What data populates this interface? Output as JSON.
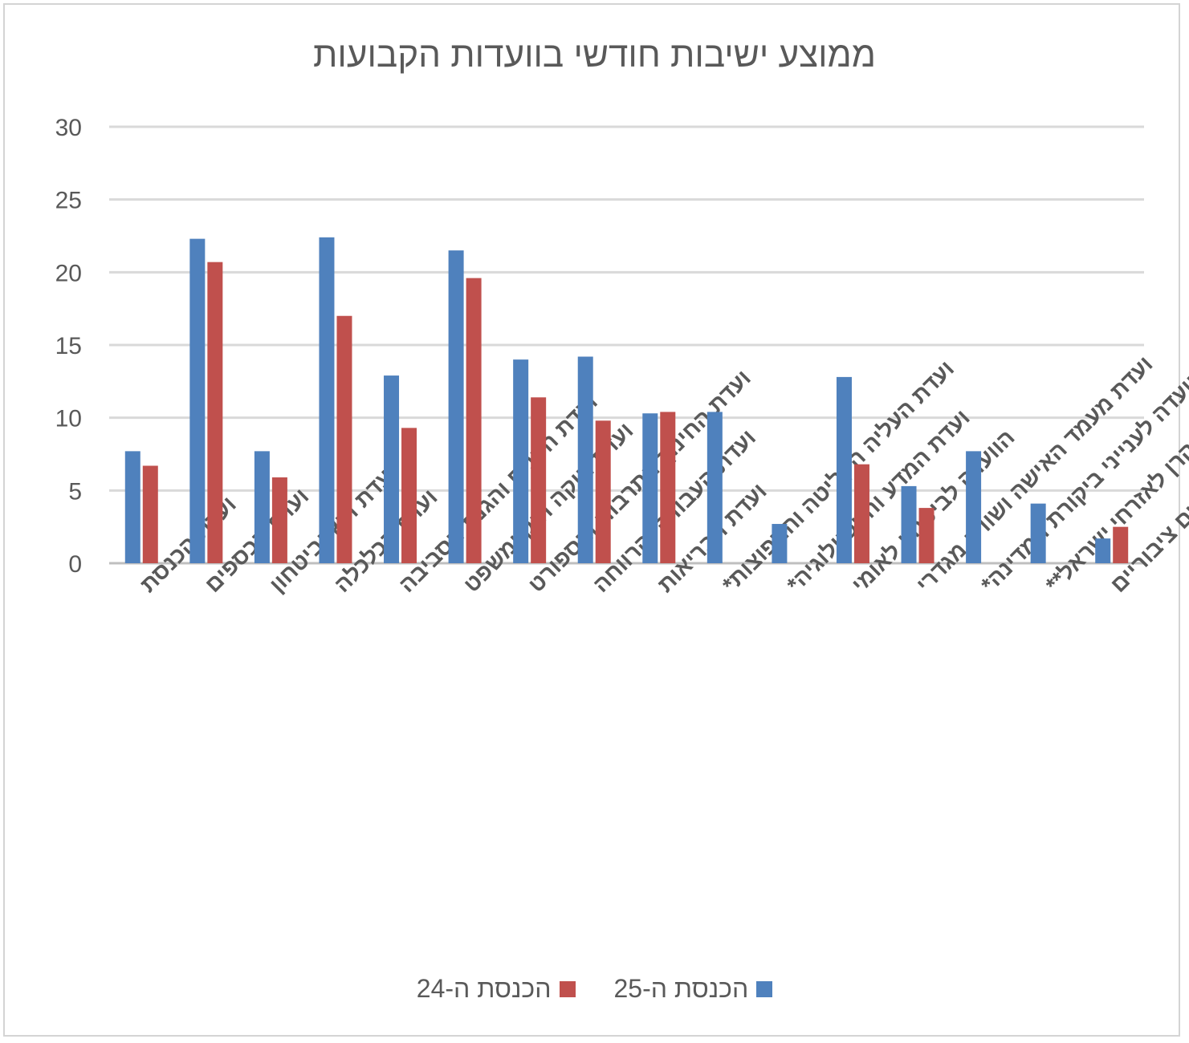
{
  "chart_data": {
    "type": "bar",
    "title": "ממוצע ישיבות חודשי בוועדות הקבועות",
    "xlabel": "",
    "ylabel": "",
    "ylim": [
      0,
      30
    ],
    "yticks": [
      0,
      5,
      10,
      15,
      20,
      25,
      30
    ],
    "grid": true,
    "legend_position": "bottom",
    "categories": [
      "ועדת הכנסת",
      "ועדת הכספים",
      "ועדת חוץ וביטחון",
      "ועדת הכלכלה",
      "ועדת הפנים והגנת הסביבה",
      "ועדת חוקה חוק ומשפט",
      "ועדת החינוך התרבות והספורט",
      "ועדת העבודה והרווחה",
      "ועדת הבריאות",
      "ועדת העליה הקליטה והתפוצות*",
      "ועדת המדע והטכנולוגיה*",
      "הוועדה לביטחון לאומי",
      "ועדת מעמד האישה ושוויון מגדרי",
      "הוועדה לענייני ביקורת המדינה*",
      "הוועדה לפיקוח על הקרן לאזרחי ישראל**",
      "הוועדה למיזמים ציבוריים"
    ],
    "series": [
      {
        "name": "הכנסת ה-25",
        "color": "#4f81bd",
        "values": [
          7.7,
          22.3,
          7.7,
          22.4,
          12.9,
          21.5,
          14.0,
          14.2,
          10.3,
          10.4,
          2.7,
          12.8,
          5.3,
          7.7,
          4.1,
          1.7
        ]
      },
      {
        "name": "הכנסת ה-24",
        "color": "#c0504d",
        "values": [
          6.7,
          20.7,
          5.9,
          17.0,
          9.3,
          19.6,
          11.4,
          9.8,
          10.4,
          null,
          null,
          6.8,
          3.8,
          null,
          null,
          2.5
        ]
      }
    ]
  },
  "colors": {
    "grid": "#d9d9d9",
    "axis": "#bfbfbf",
    "text": "#595959"
  }
}
